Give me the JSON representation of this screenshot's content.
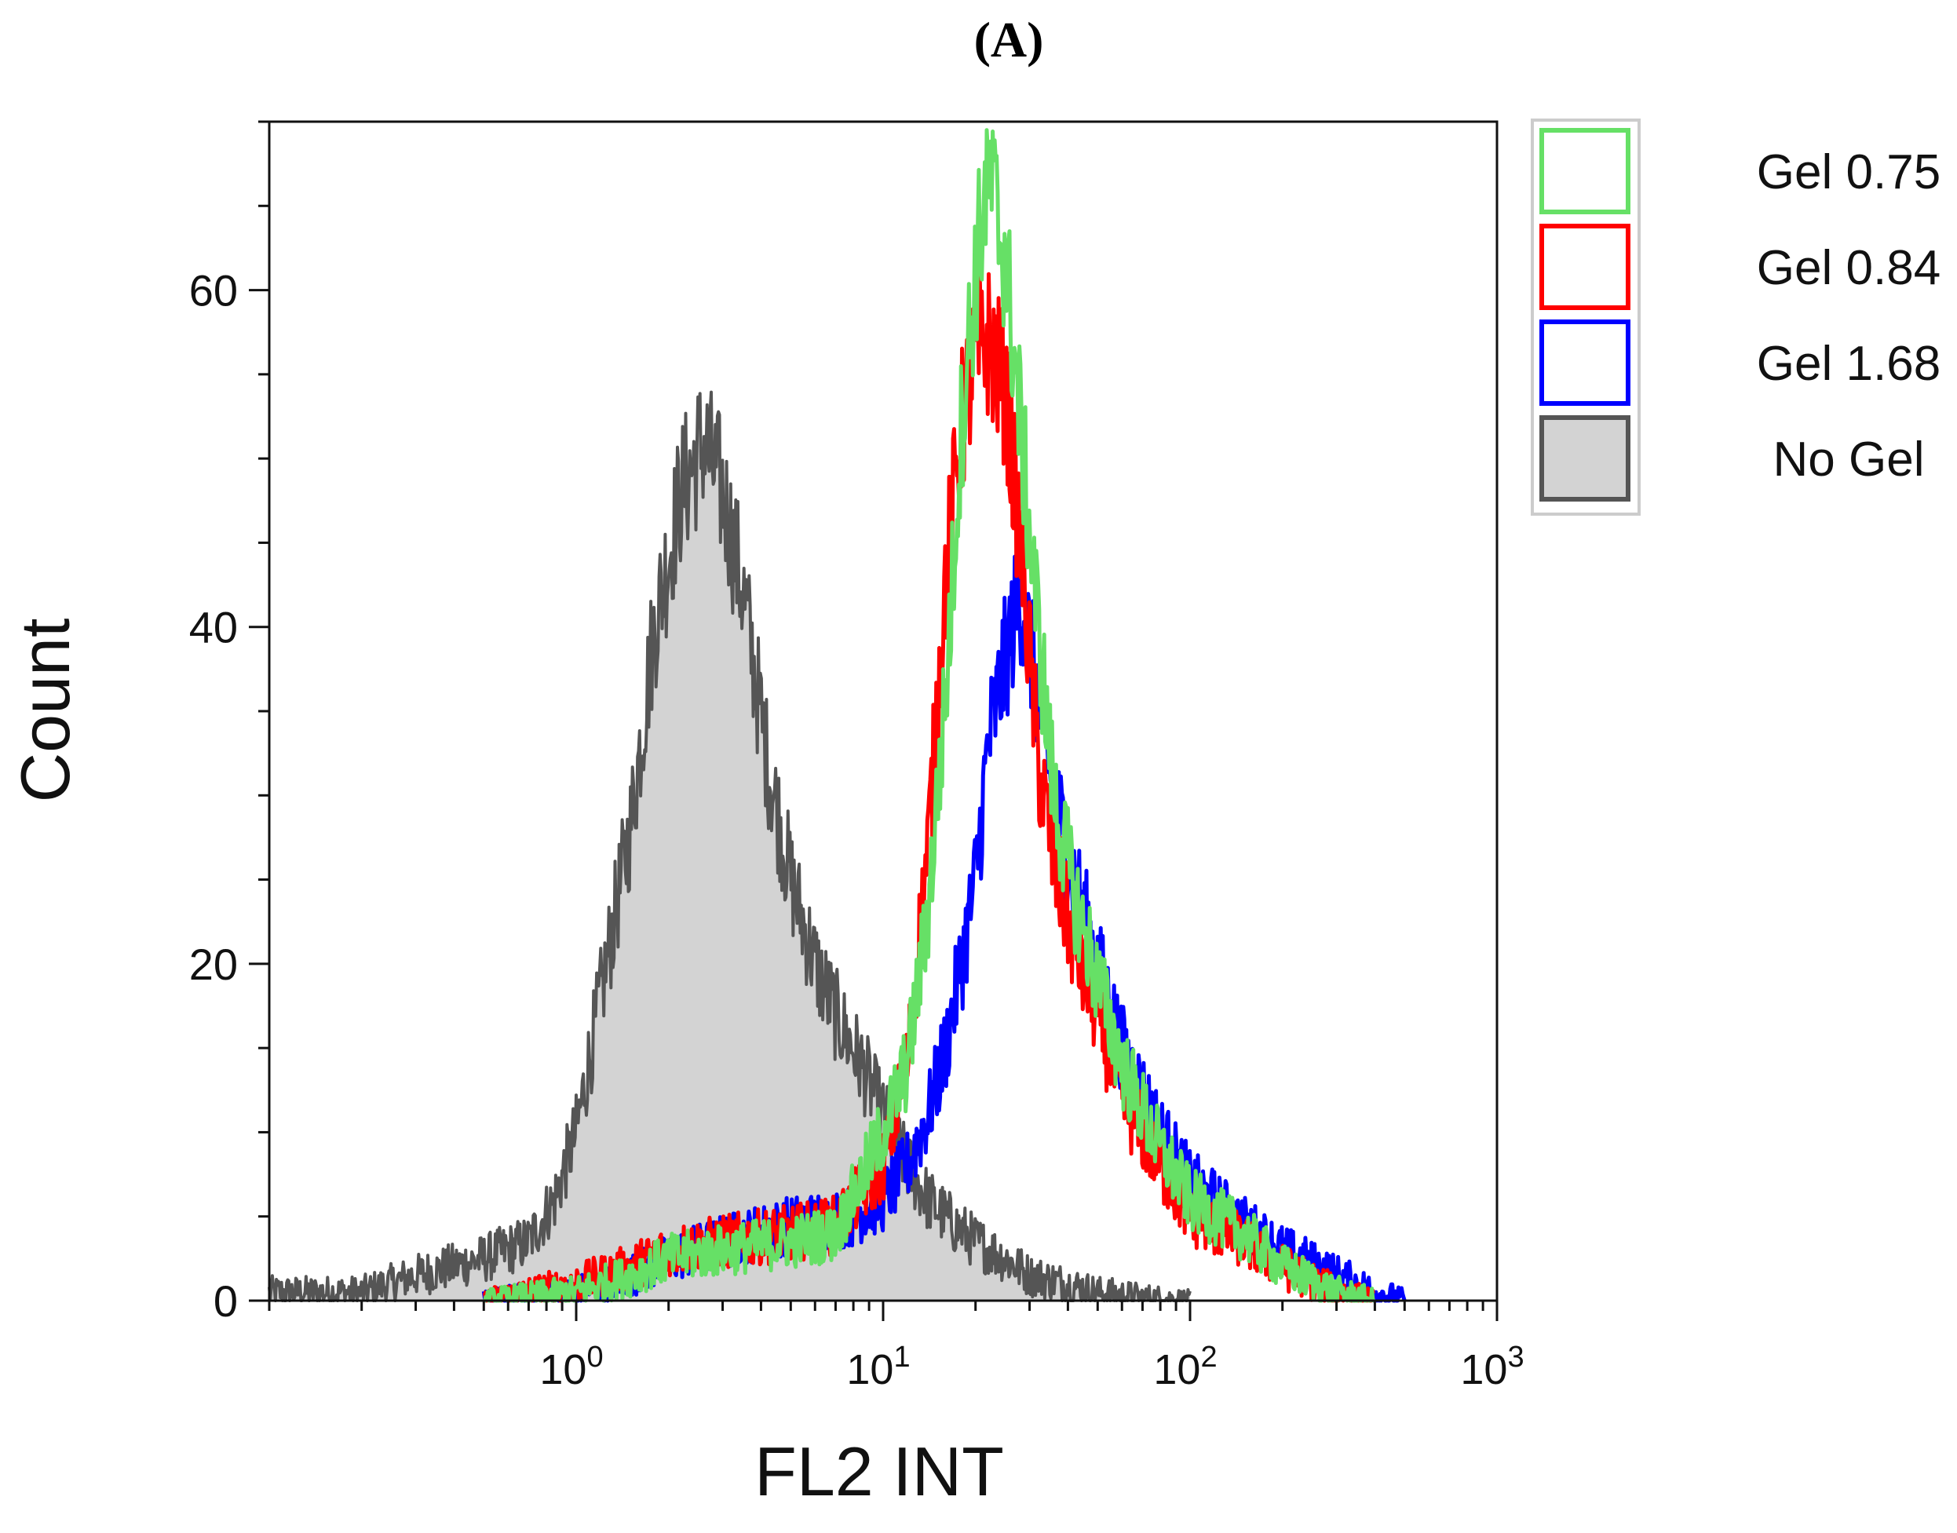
{
  "chart_data": {
    "type": "line",
    "panel_label": "(A)",
    "title": "",
    "xlabel": "FL2 INT",
    "ylabel": "Count",
    "xscale": "log",
    "xlim": [
      0.1,
      1000
    ],
    "ylim": [
      0,
      70
    ],
    "yticks": [
      {
        "value": 0,
        "label": "0"
      },
      {
        "value": 20,
        "label": "20"
      },
      {
        "value": 40,
        "label": "40"
      },
      {
        "value": 60,
        "label": "60"
      }
    ],
    "xticks": [
      {
        "value": 1,
        "base": "10",
        "exp": "0"
      },
      {
        "value": 10,
        "base": "10",
        "exp": "1"
      },
      {
        "value": 100,
        "base": "10",
        "exp": "2"
      },
      {
        "value": 1000,
        "base": "10",
        "exp": "3"
      }
    ],
    "legend_position": "right, outside top",
    "series": [
      {
        "name": "No Gel",
        "color": "#555555",
        "fill": "#d3d3d3",
        "filled": true,
        "x": [
          0.1,
          0.2,
          0.3,
          0.5,
          0.7,
          0.85,
          1.0,
          1.2,
          1.5,
          1.8,
          2.2,
          2.6,
          3.0,
          3.5,
          4.2,
          5.0,
          6.0,
          7.0,
          8.5,
          10,
          12,
          14,
          17,
          20,
          25,
          30,
          40,
          50,
          70,
          100
        ],
        "y": [
          0.5,
          0.5,
          1.5,
          2.5,
          3.5,
          6,
          10,
          18,
          28,
          40,
          48,
          51,
          48,
          42,
          32,
          25,
          20,
          17,
          14,
          11,
          8,
          6,
          4.5,
          3.5,
          2.5,
          1.5,
          1,
          0.5,
          0.2,
          0
        ]
      },
      {
        "name": "Gel 1.68",
        "color": "#0000ff",
        "fill": "none",
        "filled": false,
        "x": [
          0.5,
          1.0,
          1.5,
          2.0,
          3.0,
          5.0,
          8.0,
          10,
          12,
          14,
          16,
          18,
          20,
          22,
          25,
          28,
          32,
          36,
          42,
          50,
          60,
          80,
          100,
          150,
          200,
          300,
          400,
          500
        ],
        "y": [
          0,
          0.5,
          1.5,
          2.5,
          3.5,
          4.5,
          5,
          6,
          8,
          11,
          15,
          20,
          25,
          33,
          38,
          42,
          36,
          30,
          25,
          20,
          15,
          10,
          7,
          4.5,
          3,
          1.5,
          0.5,
          0
        ]
      },
      {
        "name": "Gel 0.84",
        "color": "#ff0000",
        "fill": "none",
        "filled": false,
        "x": [
          0.5,
          1.0,
          1.5,
          2.0,
          3.0,
          5.0,
          7.0,
          10,
          12,
          14,
          16,
          18,
          20,
          22,
          25,
          28,
          32,
          36,
          42,
          50,
          60,
          80,
          100,
          150,
          200,
          300,
          400
        ],
        "y": [
          0,
          1,
          2,
          3,
          3.5,
          4,
          4.5,
          8,
          14,
          27,
          43,
          52,
          56,
          57,
          54,
          45,
          32,
          26,
          21,
          17,
          12,
          8,
          5,
          3.5,
          2,
          0.5,
          0
        ]
      },
      {
        "name": "Gel 0.75",
        "color": "#66e066",
        "fill": "none",
        "filled": false,
        "x": [
          0.5,
          1.0,
          1.5,
          2.0,
          3.0,
          5.0,
          7.0,
          10,
          12,
          14,
          16,
          18,
          20,
          22,
          25,
          28,
          32,
          36,
          42,
          50,
          60,
          80,
          100,
          150,
          200,
          300,
          400
        ],
        "y": [
          0,
          0.5,
          1.5,
          2.5,
          3,
          3.5,
          4,
          10,
          14,
          23,
          36,
          52,
          61,
          67,
          62,
          52,
          40,
          30,
          24,
          19,
          14,
          9,
          6,
          4,
          2,
          0.5,
          0
        ]
      }
    ],
    "legend_order": [
      "Gel 0.75",
      "Gel 0.84",
      "Gel 1.68",
      "No Gel"
    ]
  }
}
